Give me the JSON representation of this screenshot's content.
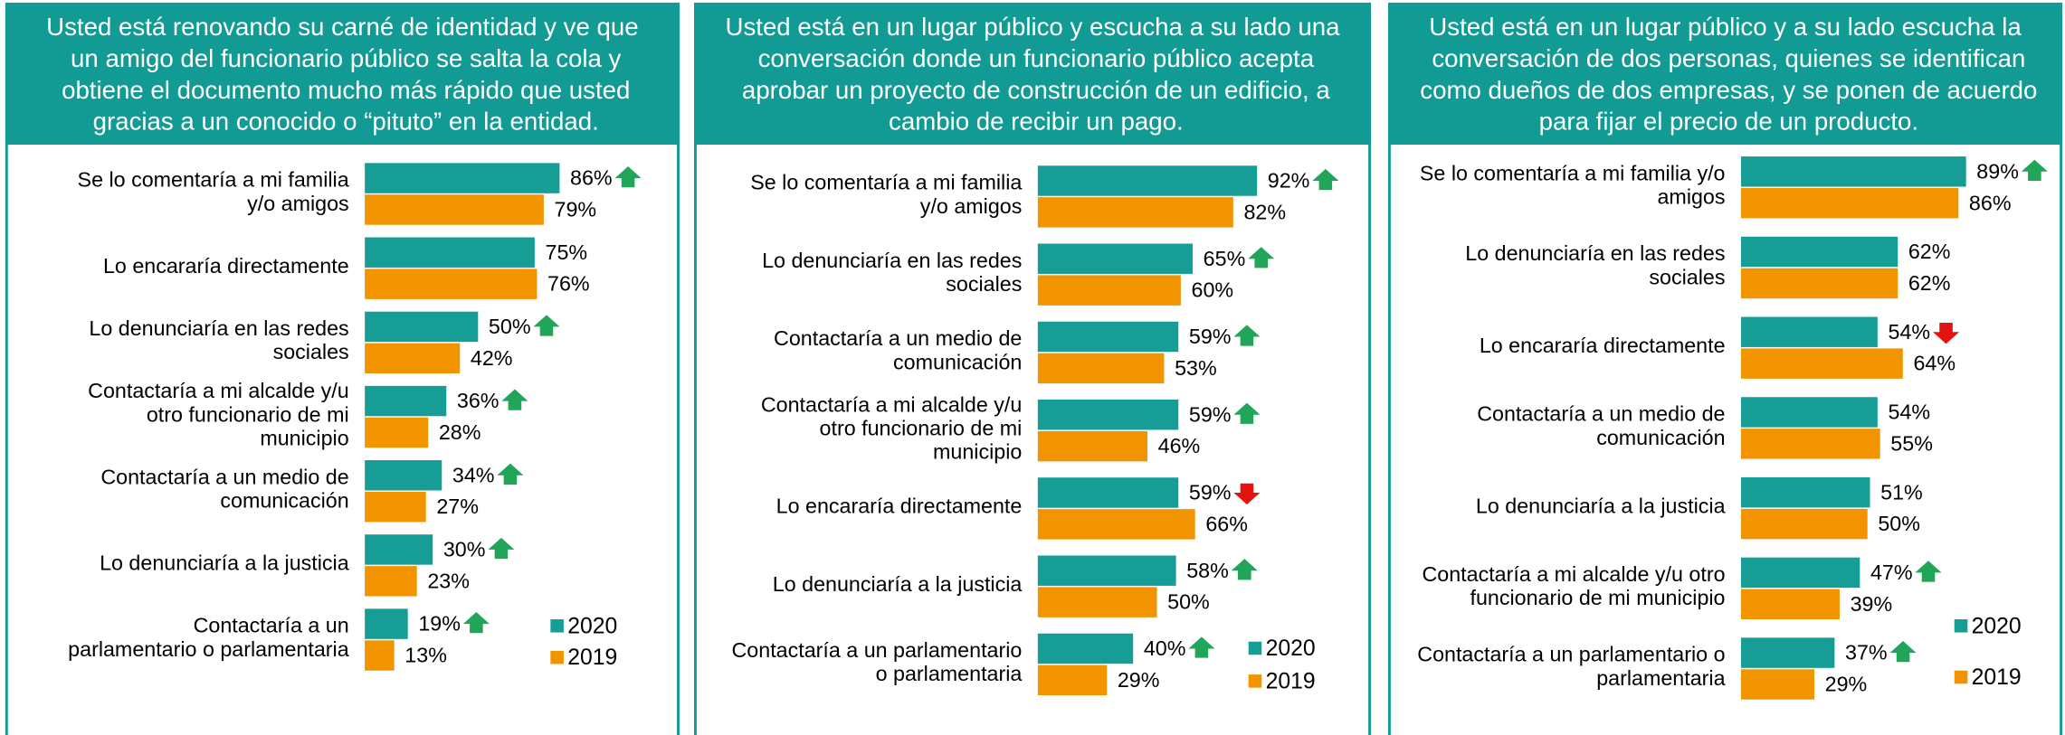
{
  "chart_data": [
    {
      "type": "bar",
      "orientation": "horizontal",
      "title": "Usted está renovando su carné de identidad y ve que un amigo del funcionario público se salta la cola y obtiene el documento mucho más rápido que usted gracias a un conocido o “pituto” en la entidad.",
      "categories": [
        "Se lo comentaría a mi familia y/o amigos",
        "Lo encararía directamente",
        "Lo denunciaría en las redes sociales",
        "Contactaría a mi alcalde y/u otro funcionario de mi municipio",
        "Contactaría a un medio de comunicación",
        "Lo denunciaría a la justicia",
        "Contactaría a un parlamentario o parlamentaria"
      ],
      "series": [
        {
          "name": "2020",
          "color": "#169e96",
          "values": [
            86,
            75,
            50,
            36,
            34,
            30,
            19
          ],
          "value_labels": [
            "86%",
            "75%",
            "50%",
            "36%",
            "34%",
            "30%",
            "19%"
          ],
          "trend": [
            "up",
            "none",
            "up",
            "up",
            "up",
            "up",
            "up"
          ]
        },
        {
          "name": "2019",
          "color": "#f29400",
          "values": [
            79,
            76,
            42,
            28,
            27,
            23,
            13
          ],
          "value_labels": [
            "79%",
            "76%",
            "42%",
            "28%",
            "27%",
            "23%",
            "13%"
          ]
        }
      ],
      "xlim": [
        0,
        100
      ]
    },
    {
      "type": "bar",
      "orientation": "horizontal",
      "title": "Usted está en un lugar público y escucha a su lado una conversación donde un funcionario público acepta aprobar un proyecto de construcción de un edificio, a cambio de recibir un pago.",
      "categories": [
        "Se lo comentaría a mi familia y/o amigos",
        "Lo denunciaría en las redes sociales",
        "Contactaría a un medio de comunicación",
        "Contactaría a mi alcalde y/u otro funcionario de mi municipio",
        "Lo encararía directamente",
        "Lo denunciaría a la justicia",
        "Contactaría a un parlamentario o parlamentaria"
      ],
      "series": [
        {
          "name": "2020",
          "color": "#169e96",
          "values": [
            92,
            65,
            59,
            59,
            59,
            58,
            40
          ],
          "value_labels": [
            "92%",
            "65%",
            "59%",
            "59%",
            "59%",
            "58%",
            "40%"
          ],
          "trend": [
            "up",
            "up",
            "up",
            "up",
            "down",
            "up",
            "up"
          ]
        },
        {
          "name": "2019",
          "color": "#f29400",
          "values": [
            82,
            60,
            53,
            46,
            66,
            50,
            29
          ],
          "value_labels": [
            "82%",
            "60%",
            "53%",
            "46%",
            "66%",
            "50%",
            "29%"
          ]
        }
      ],
      "xlim": [
        0,
        100
      ]
    },
    {
      "type": "bar",
      "orientation": "horizontal",
      "title": "Usted está en un lugar público y a su lado escucha la conversación de dos personas, quienes se identifican como dueños de dos empresas, y se ponen de acuerdo para fijar el precio de un producto.",
      "categories": [
        "Se lo comentaría a mi familia y/o amigos",
        "Lo denunciaría en las redes sociales",
        "Lo encararía directamente",
        "Contactaría a un medio de comunicación",
        "Lo denunciaría a la justicia",
        "Contactaría a mi alcalde y/u otro funcionario de mi municipio",
        "Contactaría a un parlamentario o parlamentaria"
      ],
      "series": [
        {
          "name": "2020",
          "color": "#169e96",
          "values": [
            89,
            62,
            54,
            54,
            51,
            47,
            37
          ],
          "value_labels": [
            "89%",
            "62%",
            "54%",
            "54%",
            "51%",
            "47%",
            "37%"
          ],
          "trend": [
            "up",
            "none",
            "down",
            "none",
            "none",
            "up",
            "up"
          ]
        },
        {
          "name": "2019",
          "color": "#f29400",
          "values": [
            86,
            62,
            64,
            55,
            50,
            39,
            29
          ],
          "value_labels": [
            "86%",
            "62%",
            "64%",
            "55%",
            "50%",
            "39%",
            "29%"
          ]
        }
      ],
      "xlim": [
        0,
        100
      ]
    }
  ]
}
